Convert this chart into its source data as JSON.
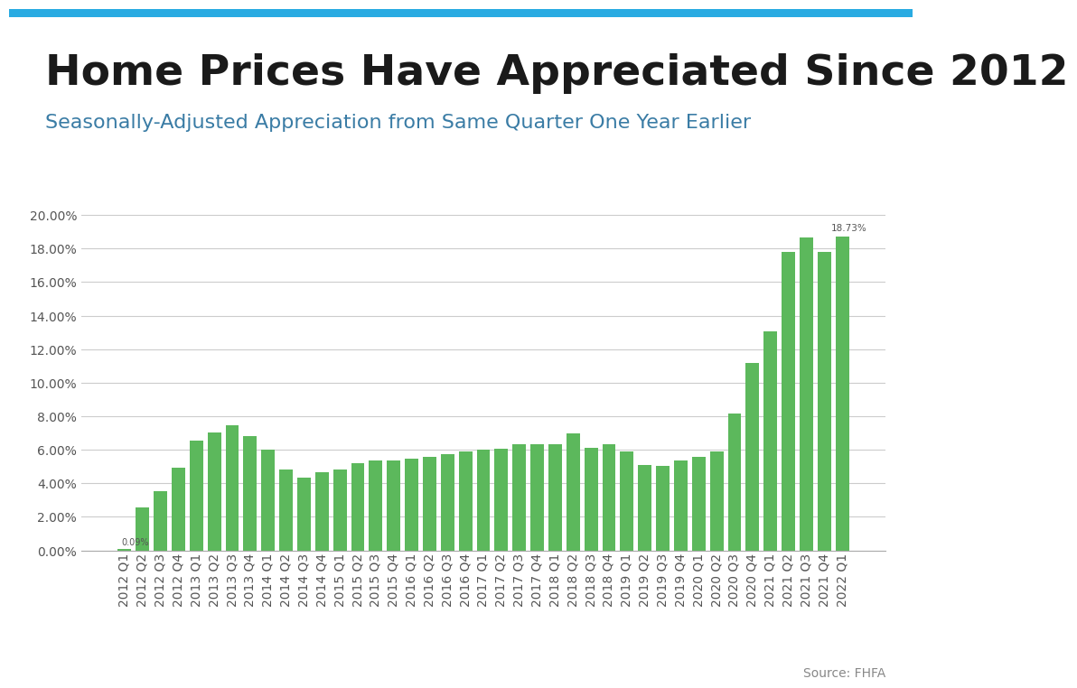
{
  "title": "Home Prices Have Appreciated Since 2012",
  "subtitle": "Seasonally-Adjusted Appreciation from Same Quarter One Year Earlier",
  "source": "Source: FHFA",
  "bar_color": "#5cb85c",
  "background_color": "#ffffff",
  "title_color": "#1a1a1a",
  "subtitle_color": "#3a7ca5",
  "top_bar_color": "#29abe2",
  "top_bar_height": 0.013,
  "axis_color": "#888888",
  "grid_color": "#cccccc",
  "categories": [
    "2012 Q1",
    "2012 Q2",
    "2012 Q3",
    "2012 Q4",
    "2013 Q1",
    "2013 Q2",
    "2013 Q3",
    "2013 Q4",
    "2014 Q1",
    "2014 Q2",
    "2014 Q3",
    "2014 Q4",
    "2015 Q1",
    "2015 Q2",
    "2015 Q3",
    "2015 Q4",
    "2016 Q1",
    "2016 Q2",
    "2016 Q3",
    "2016 Q4",
    "2017 Q1",
    "2017 Q2",
    "2017 Q3",
    "2017 Q4",
    "2018 Q1",
    "2018 Q2",
    "2018 Q3",
    "2018 Q4",
    "2019 Q1",
    "2019 Q2",
    "2019 Q3",
    "2019 Q4",
    "2020 Q1",
    "2020 Q2",
    "2020 Q3",
    "2020 Q4",
    "2021 Q1",
    "2021 Q2",
    "2021 Q3",
    "2021 Q4",
    "2022 Q1"
  ],
  "values": [
    0.09,
    2.55,
    3.52,
    4.92,
    6.55,
    7.02,
    7.48,
    6.8,
    6.0,
    4.82,
    4.32,
    4.65,
    4.82,
    5.2,
    5.38,
    5.38,
    5.48,
    5.55,
    5.72,
    5.92,
    6.02,
    6.08,
    6.32,
    6.32,
    6.35,
    6.98,
    6.12,
    6.35,
    5.92,
    5.1,
    5.05,
    5.38,
    5.55,
    5.88,
    8.18,
    11.15,
    13.05,
    17.78,
    18.65,
    17.82,
    18.73
  ],
  "ylim_max": 0.21,
  "yticks": [
    0.0,
    0.02,
    0.04,
    0.06,
    0.08,
    0.1,
    0.12,
    0.14,
    0.16,
    0.18,
    0.2
  ],
  "annotation_bar_idx": 40,
  "annotation_value": "18.73%",
  "first_bar_annotation": "0.09%",
  "title_fontsize": 34,
  "subtitle_fontsize": 16,
  "tick_fontsize": 10,
  "source_fontsize": 10
}
